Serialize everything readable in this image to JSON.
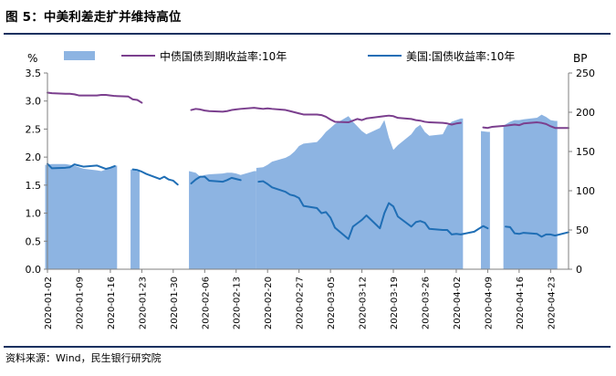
{
  "figure_title": "图 5：中美利差走扩并维持高位",
  "source_note": "资料来源：Wind，民生银行研究院",
  "chart_data": {
    "type": "line",
    "left_axis": {
      "label": "%",
      "ylim": [
        0,
        3.5
      ],
      "ticks": [
        "0.0",
        "0.5",
        "1.0",
        "1.5",
        "2.0",
        "2.5",
        "3.0",
        "3.5"
      ]
    },
    "right_axis": {
      "label": "BP",
      "ylim": [
        0,
        250
      ],
      "ticks": [
        "0",
        "50",
        "100",
        "150",
        "200",
        "250"
      ]
    },
    "x_tick_labels": [
      "2020-01-02",
      "2020-01-09",
      "2020-01-16",
      "2020-01-23",
      "2020-01-30",
      "2020-02-06",
      "2020-02-13",
      "2020-02-20",
      "2020-02-27",
      "2020-03-05",
      "2020-03-12",
      "2020-03-19",
      "2020-03-26",
      "2020-04-02",
      "2020-04-09",
      "2020-04-16",
      "2020-04-23"
    ],
    "legend": [
      {
        "name": "",
        "kind": "area",
        "color": "#8db4e2"
      },
      {
        "name": "中债国债到期收益率:10年",
        "kind": "line",
        "color": "#7b3f8e"
      },
      {
        "name": "美国:国债收益率:10年",
        "kind": "line",
        "color": "#1f6eb5"
      }
    ],
    "x_start": "2020-01-02",
    "x_end": "2020-04-27",
    "spread_series": {
      "name": "",
      "axis": "right",
      "color": "#8db4e2",
      "segments": [
        [
          [
            "2020-01-02",
            133
          ],
          [
            "2020-01-03",
            134
          ],
          [
            "2020-01-06",
            134
          ],
          [
            "2020-01-07",
            133
          ],
          [
            "2020-01-08",
            132
          ],
          [
            "2020-01-09",
            130
          ],
          [
            "2020-01-10",
            128
          ],
          [
            "2020-01-13",
            126
          ],
          [
            "2020-01-14",
            125
          ],
          [
            "2020-01-15",
            127
          ],
          [
            "2020-01-16",
            130
          ],
          [
            "2020-01-17",
            132
          ]
        ],
        [
          [
            "2020-01-21",
            127
          ],
          [
            "2020-01-22",
            125
          ]
        ],
        [
          [
            "2020-02-03",
            125
          ],
          [
            "2020-02-04",
            123
          ],
          [
            "2020-02-05",
            118
          ],
          [
            "2020-02-06",
            120
          ],
          [
            "2020-02-07",
            121
          ],
          [
            "2020-02-10",
            122
          ],
          [
            "2020-02-11",
            123
          ],
          [
            "2020-02-12",
            123
          ],
          [
            "2020-02-13",
            122
          ],
          [
            "2020-02-14",
            120
          ],
          [
            "2020-02-17",
            125
          ]
        ],
        [
          [
            "2020-02-18",
            129
          ],
          [
            "2020-02-19",
            130
          ],
          [
            "2020-02-20",
            133
          ],
          [
            "2020-02-21",
            137
          ],
          [
            "2020-02-24",
            142
          ],
          [
            "2020-02-25",
            145
          ],
          [
            "2020-02-26",
            150
          ],
          [
            "2020-02-27",
            157
          ],
          [
            "2020-02-28",
            160
          ],
          [
            "2020-03-02",
            162
          ],
          [
            "2020-03-03",
            168
          ],
          [
            "2020-03-04",
            175
          ],
          [
            "2020-03-05",
            180
          ],
          [
            "2020-03-06",
            185
          ],
          [
            "2020-03-09",
            195
          ],
          [
            "2020-03-10",
            188
          ],
          [
            "2020-03-11",
            182
          ],
          [
            "2020-03-12",
            176
          ],
          [
            "2020-03-13",
            172
          ],
          [
            "2020-03-16",
            180
          ],
          [
            "2020-03-17",
            190
          ],
          [
            "2020-03-18",
            168
          ],
          [
            "2020-03-19",
            152
          ],
          [
            "2020-03-20",
            158
          ],
          [
            "2020-03-23",
            172
          ],
          [
            "2020-03-24",
            180
          ],
          [
            "2020-03-25",
            184
          ],
          [
            "2020-03-26",
            175
          ],
          [
            "2020-03-27",
            170
          ],
          [
            "2020-03-30",
            172
          ],
          [
            "2020-03-31",
            183
          ],
          [
            "2020-04-01",
            188
          ],
          [
            "2020-04-02",
            190
          ],
          [
            "2020-04-03",
            192
          ]
        ],
        [
          [
            "2020-04-08",
            176
          ],
          [
            "2020-04-09",
            175
          ]
        ],
        [
          [
            "2020-04-13",
            183
          ],
          [
            "2020-04-14",
            188
          ],
          [
            "2020-04-15",
            190
          ],
          [
            "2020-04-16",
            190
          ],
          [
            "2020-04-17",
            191
          ],
          [
            "2020-04-20",
            193
          ],
          [
            "2020-04-21",
            197
          ],
          [
            "2020-04-22",
            194
          ],
          [
            "2020-04-23",
            190
          ],
          [
            "2020-04-24",
            189
          ]
        ]
      ]
    },
    "cn_series": {
      "name": "中债国债到期收益率:10年",
      "axis": "left",
      "color": "#7b3f8e",
      "segments": [
        [
          [
            "2020-01-02",
            3.15
          ],
          [
            "2020-01-03",
            3.14
          ],
          [
            "2020-01-06",
            3.13
          ],
          [
            "2020-01-07",
            3.13
          ],
          [
            "2020-01-08",
            3.12
          ],
          [
            "2020-01-09",
            3.1
          ],
          [
            "2020-01-10",
            3.1
          ],
          [
            "2020-01-13",
            3.1
          ],
          [
            "2020-01-14",
            3.11
          ],
          [
            "2020-01-15",
            3.11
          ],
          [
            "2020-01-16",
            3.1
          ],
          [
            "2020-01-17",
            3.09
          ],
          [
            "2020-01-20",
            3.08
          ],
          [
            "2020-01-21",
            3.03
          ],
          [
            "2020-01-22",
            3.02
          ],
          [
            "2020-01-23",
            2.97
          ]
        ],
        [
          [
            "2020-02-03",
            2.84
          ],
          [
            "2020-02-04",
            2.86
          ],
          [
            "2020-02-05",
            2.85
          ],
          [
            "2020-02-06",
            2.83
          ],
          [
            "2020-02-07",
            2.82
          ],
          [
            "2020-02-10",
            2.81
          ],
          [
            "2020-02-11",
            2.82
          ],
          [
            "2020-02-12",
            2.84
          ],
          [
            "2020-02-13",
            2.85
          ],
          [
            "2020-02-14",
            2.86
          ],
          [
            "2020-02-17",
            2.88
          ],
          [
            "2020-02-18",
            2.87
          ],
          [
            "2020-02-19",
            2.86
          ],
          [
            "2020-02-20",
            2.87
          ],
          [
            "2020-02-21",
            2.86
          ],
          [
            "2020-02-24",
            2.84
          ],
          [
            "2020-02-25",
            2.82
          ],
          [
            "2020-02-26",
            2.8
          ],
          [
            "2020-02-27",
            2.78
          ],
          [
            "2020-02-28",
            2.76
          ],
          [
            "2020-03-02",
            2.76
          ],
          [
            "2020-03-03",
            2.75
          ],
          [
            "2020-03-04",
            2.72
          ],
          [
            "2020-03-05",
            2.67
          ],
          [
            "2020-03-06",
            2.63
          ],
          [
            "2020-03-09",
            2.62
          ],
          [
            "2020-03-10",
            2.65
          ],
          [
            "2020-03-11",
            2.68
          ],
          [
            "2020-03-12",
            2.66
          ],
          [
            "2020-03-13",
            2.69
          ],
          [
            "2020-03-16",
            2.72
          ],
          [
            "2020-03-17",
            2.73
          ],
          [
            "2020-03-18",
            2.74
          ],
          [
            "2020-03-19",
            2.73
          ],
          [
            "2020-03-20",
            2.7
          ],
          [
            "2020-03-23",
            2.68
          ],
          [
            "2020-03-24",
            2.66
          ],
          [
            "2020-03-25",
            2.65
          ],
          [
            "2020-03-26",
            2.63
          ],
          [
            "2020-03-27",
            2.62
          ],
          [
            "2020-03-30",
            2.61
          ],
          [
            "2020-03-31",
            2.6
          ],
          [
            "2020-04-01",
            2.58
          ],
          [
            "2020-04-02",
            2.6
          ],
          [
            "2020-04-03",
            2.61
          ]
        ],
        [
          [
            "2020-04-08",
            2.53
          ],
          [
            "2020-04-09",
            2.52
          ],
          [
            "2020-04-10",
            2.54
          ],
          [
            "2020-04-13",
            2.56
          ],
          [
            "2020-04-14",
            2.57
          ],
          [
            "2020-04-15",
            2.58
          ],
          [
            "2020-04-16",
            2.57
          ],
          [
            "2020-04-17",
            2.6
          ],
          [
            "2020-04-20",
            2.62
          ],
          [
            "2020-04-21",
            2.61
          ],
          [
            "2020-04-22",
            2.59
          ],
          [
            "2020-04-23",
            2.55
          ],
          [
            "2020-04-24",
            2.52
          ],
          [
            "2020-04-27",
            2.52
          ]
        ]
      ]
    },
    "us_series": {
      "name": "美国:国债收益率:10年",
      "axis": "left",
      "color": "#1f6eb5",
      "segments": [
        [
          [
            "2020-01-02",
            1.88
          ],
          [
            "2020-01-03",
            1.8
          ],
          [
            "2020-01-06",
            1.81
          ],
          [
            "2020-01-07",
            1.82
          ],
          [
            "2020-01-08",
            1.87
          ],
          [
            "2020-01-09",
            1.85
          ],
          [
            "2020-01-10",
            1.83
          ],
          [
            "2020-01-13",
            1.85
          ],
          [
            "2020-01-14",
            1.82
          ],
          [
            "2020-01-15",
            1.79
          ],
          [
            "2020-01-16",
            1.81
          ],
          [
            "2020-01-17",
            1.84
          ]
        ],
        [
          [
            "2020-01-21",
            1.78
          ],
          [
            "2020-01-22",
            1.77
          ],
          [
            "2020-01-23",
            1.74
          ],
          [
            "2020-01-24",
            1.7
          ],
          [
            "2020-01-27",
            1.61
          ],
          [
            "2020-01-28",
            1.65
          ],
          [
            "2020-01-29",
            1.6
          ],
          [
            "2020-01-30",
            1.58
          ],
          [
            "2020-01-31",
            1.51
          ]
        ],
        [
          [
            "2020-02-03",
            1.53
          ],
          [
            "2020-02-04",
            1.6
          ],
          [
            "2020-02-05",
            1.65
          ],
          [
            "2020-02-06",
            1.65
          ],
          [
            "2020-02-07",
            1.58
          ],
          [
            "2020-02-10",
            1.56
          ],
          [
            "2020-02-11",
            1.59
          ],
          [
            "2020-02-12",
            1.63
          ],
          [
            "2020-02-13",
            1.61
          ],
          [
            "2020-02-14",
            1.59
          ]
        ],
        [
          [
            "2020-02-18",
            1.56
          ],
          [
            "2020-02-19",
            1.57
          ],
          [
            "2020-02-20",
            1.52
          ],
          [
            "2020-02-21",
            1.46
          ],
          [
            "2020-02-24",
            1.38
          ],
          [
            "2020-02-25",
            1.33
          ],
          [
            "2020-02-26",
            1.31
          ],
          [
            "2020-02-27",
            1.27
          ],
          [
            "2020-02-28",
            1.13
          ],
          [
            "2020-03-02",
            1.09
          ],
          [
            "2020-03-03",
            1.0
          ],
          [
            "2020-03-04",
            1.02
          ],
          [
            "2020-03-05",
            0.92
          ],
          [
            "2020-03-06",
            0.74
          ],
          [
            "2020-03-09",
            0.54
          ],
          [
            "2020-03-10",
            0.76
          ],
          [
            "2020-03-11",
            0.82
          ],
          [
            "2020-03-12",
            0.88
          ],
          [
            "2020-03-13",
            0.96
          ],
          [
            "2020-03-16",
            0.73
          ],
          [
            "2020-03-17",
            1.0
          ],
          [
            "2020-03-18",
            1.18
          ],
          [
            "2020-03-19",
            1.12
          ],
          [
            "2020-03-20",
            0.94
          ],
          [
            "2020-03-23",
            0.76
          ],
          [
            "2020-03-24",
            0.84
          ],
          [
            "2020-03-25",
            0.86
          ],
          [
            "2020-03-26",
            0.83
          ],
          [
            "2020-03-27",
            0.72
          ],
          [
            "2020-03-30",
            0.7
          ],
          [
            "2020-03-31",
            0.7
          ],
          [
            "2020-04-01",
            0.62
          ],
          [
            "2020-04-02",
            0.63
          ],
          [
            "2020-04-03",
            0.62
          ],
          [
            "2020-04-06",
            0.67
          ],
          [
            "2020-04-07",
            0.72
          ],
          [
            "2020-04-08",
            0.77
          ],
          [
            "2020-04-09",
            0.73
          ]
        ],
        [
          [
            "2020-04-13",
            0.76
          ],
          [
            "2020-04-14",
            0.75
          ],
          [
            "2020-04-15",
            0.64
          ],
          [
            "2020-04-16",
            0.63
          ],
          [
            "2020-04-17",
            0.65
          ],
          [
            "2020-04-20",
            0.63
          ],
          [
            "2020-04-21",
            0.58
          ],
          [
            "2020-04-22",
            0.62
          ],
          [
            "2020-04-23",
            0.62
          ],
          [
            "2020-04-24",
            0.6
          ],
          [
            "2020-04-27",
            0.66
          ]
        ]
      ]
    }
  }
}
